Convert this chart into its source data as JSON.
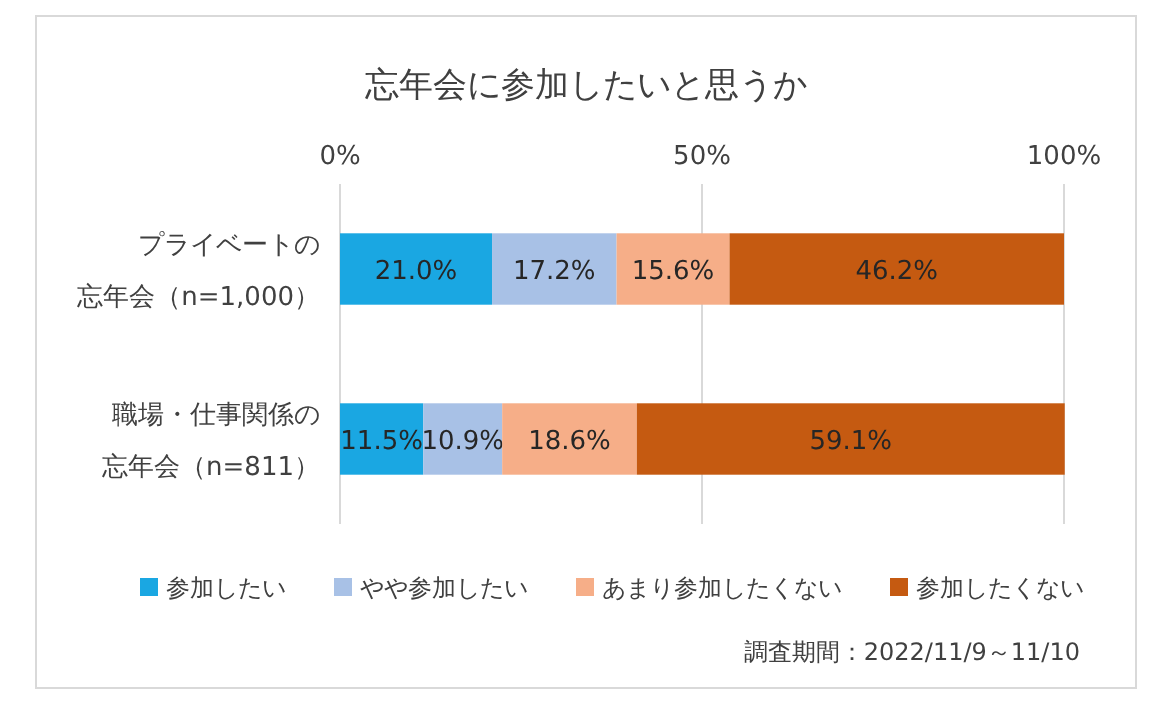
{
  "chart_data": {
    "type": "bar",
    "orientation": "horizontal",
    "stacked": true,
    "title": "忘年会に参加したいと思うか",
    "categories": [
      "プライベートの忘年会（n=1,000）",
      "職場・仕事関係の忘年会（n=811）"
    ],
    "series": [
      {
        "name": "参加したい",
        "color": "#1aa7e2",
        "values": [
          21.0,
          11.5
        ],
        "value_labels": [
          "21.0%",
          "11.5%"
        ]
      },
      {
        "name": "やや参加したい",
        "color": "#a8c1e6",
        "values": [
          17.2,
          10.9
        ],
        "value_labels": [
          "17.2%",
          "10.9%"
        ]
      },
      {
        "name": "あまり参加したくない",
        "color": "#f6ae88",
        "values": [
          15.6,
          18.6
        ],
        "value_labels": [
          "15.6%",
          "18.6%"
        ]
      },
      {
        "name": "参加したくない",
        "color": "#c55a11",
        "values": [
          46.2,
          59.1
        ],
        "value_labels": [
          "46.2%",
          "59.1%"
        ]
      }
    ],
    "xlim": [
      0,
      100
    ],
    "xticks": [
      {
        "value": 0,
        "label": "0%"
      },
      {
        "value": 50,
        "label": "50%"
      },
      {
        "value": 100,
        "label": "100%"
      }
    ],
    "grid": "x",
    "legend": "bottom",
    "annotations": [
      "調査期間：2022/11/9～11/10"
    ]
  }
}
